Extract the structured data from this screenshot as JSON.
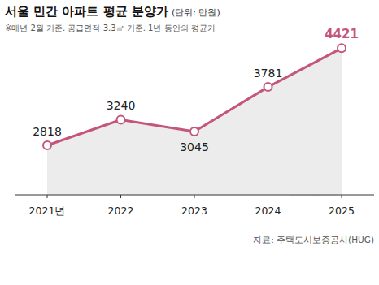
{
  "chart_data": {
    "type": "line",
    "title": "서울 민간 아파트 평균 분양가",
    "subtitle": "(단위: 만원)",
    "annotations": [
      "※매년 2월 기준. 공급면적 3.3㎡ 기준. 1년 동안의 평균가"
    ],
    "source": "자료: 주택도시보증공사(HUG)",
    "categories": [
      "2021년",
      "2022",
      "2023",
      "2024",
      "2025"
    ],
    "values": [
      2818,
      3240,
      3045,
      3781,
      4421
    ],
    "color": "#c4557b",
    "marker": "circle",
    "ylim": [
      2000,
      4600
    ],
    "grid": false,
    "data_labels": true,
    "tick_labels": "x"
  }
}
